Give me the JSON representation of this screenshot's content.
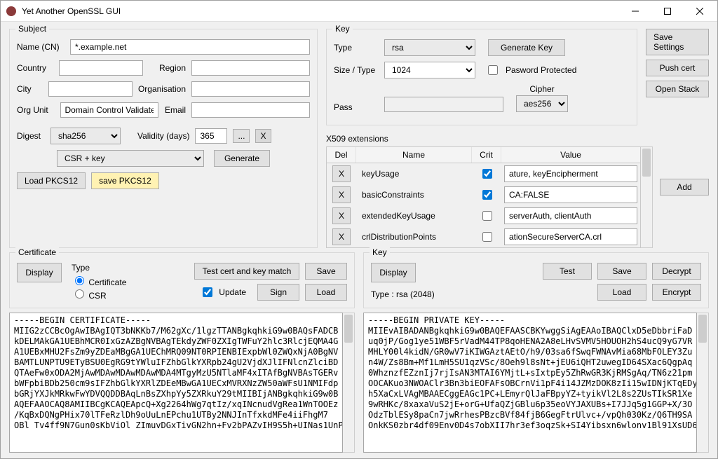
{
  "window": {
    "title": "Yet Another OpenSSL GUI"
  },
  "side_buttons": {
    "save_settings": "Save Settings",
    "push_cert": "Push cert",
    "open_stack": "Open Stack",
    "add": "Add"
  },
  "subject": {
    "legend": "Subject",
    "name_label": "Name (CN)",
    "name_value": "*.example.net",
    "country_label": "Country",
    "country_value": "",
    "region_label": "Region",
    "region_value": "",
    "city_label": "City",
    "city_value": "",
    "org_label": "Organisation",
    "org_value": "",
    "ou_label": "Org Unit",
    "ou_value": "Domain Control Validated",
    "email_label": "Email",
    "email_value": "",
    "digest_label": "Digest",
    "digest_value": "sha256",
    "validity_label": "Validity (days)",
    "validity_value": "365",
    "browse": "...",
    "clear": "X",
    "mode_value": "CSR + key",
    "generate": "Generate",
    "load_pkcs12": "Load PKCS12",
    "save_pkcs12": "save PKCS12"
  },
  "key": {
    "legend": "Key",
    "type_label": "Type",
    "type_value": "rsa",
    "gen_key": "Generate Key",
    "size_label": "Size / Type",
    "size_value": "1024",
    "pwd_protected_label": "Pasword Protected",
    "pwd_protected_checked": false,
    "pass_label": "Pass",
    "pass_value": "",
    "cipher_label": "Cipher",
    "cipher_value": "aes256"
  },
  "x509": {
    "legend": "X509 extensions",
    "cols": {
      "del": "Del",
      "name": "Name",
      "crit": "Crit",
      "value": "Value"
    },
    "rows": [
      {
        "name": "keyUsage",
        "crit": true,
        "value": "ature, keyEncipherment"
      },
      {
        "name": "basicConstraints",
        "crit": true,
        "value": "CA:FALSE"
      },
      {
        "name": "extendedKeyUsage",
        "crit": false,
        "value": "serverAuth, clientAuth"
      },
      {
        "name": "crlDistributionPoints",
        "crit": false,
        "value": "ationSecureServerCA.crl"
      }
    ],
    "del_glyph": "X"
  },
  "cert_panel": {
    "legend": "Certificate",
    "display": "Display",
    "type_label": "Type",
    "radio_cert": "Certificate",
    "radio_csr": "CSR",
    "test_match": "Test cert and key match",
    "save": "Save",
    "sign": "Sign",
    "load": "Load",
    "update_label": "Update",
    "update_checked": true
  },
  "key_panel": {
    "legend": "Key",
    "display": "Display",
    "type_line": "Type :  rsa (2048)",
    "test": "Test",
    "save": "Save",
    "decrypt": "Decrypt",
    "load": "Load",
    "encrypt": "Encrypt"
  },
  "cert_text": "-----BEGIN CERTIFICATE-----\nMIIG2zCCBcOgAwIBAgIQT3bNKKb7/M62gXc/1lgzTTANBgkqhkiG9w0BAQsFADCB\nkDELMAkGA1UEBhMCR0IxGzAZBgNVBAgTEkdyZWF0ZXIgTWFuY2hlc3RlcjEQMA4G\nA1UEBxMHU2FsZm9yZDEaMBgGA1UEChMRQ09NT0RPIENBIExpbWl0ZWQxNjA0BgNV\nBAMTLUNPTU9ETyBSU0EgRG9tYWluIFZhbGlkYXRpb24gU2VjdXJlIFNlcnZlciBD\nQTAeFw0xODA2MjAwMDAwMDAwMDAwMDA4MTgyMzU5NTlaMF4xITAfBgNVBAsTGERv\nbWFpbiBDb250cm9sIFZhbGlkYXRlZDEeMBwGA1UECxMVRXNzZW50aWFsU1NMIFdp\nbGRjYXJkMRkwFwYDVQQDDBAqLnBsZXhpYy5ZXRkuY29tMIIBIjANBgkqhkiG9w0B\nAQEFAAOCAQ8AMIIBCgKCAQEApcQ+Xg2264hWg7qtIz/xqINcnudVgRea1WnTOOEz\n/KqBxDQNgPHix70lTFeRzlDh9oUuLnEPchu1UTBy2NNJInTfxkdMFe4iiFhgM7\nOBl Tv4ff9N7Gun0sKbViOl ZImuvDGxTivGN2hn+Fv2bPAZvIH9S5h+UINas1UnP/",
  "key_text": "-----BEGIN PRIVATE KEY-----\nMIIEvAIBADANBgkqhkiG9w0BAQEFAASCBKYwggSiAgEAAoIBAQClxD5eDbbriFaD\nuq0jP/Gog1ye51WBF5rVadM44TP8qoHENA2A8eLHvSVMV5HOUOH2hS4ucQ9yG7VR\nMHLY00l4kidN/GR0wV7iKIWGAztAEtO/h9/03sa6fSwqFWNAvMia68MbFOLEY3Zu\nn4W/Zs8Bm+Mf1LmH5SU1qzVSc/8Oeh9l8sNt+jEU6iQHT2uwegID64SXac6QgpAq\n0WhznzfEZznIj7rjIsAN3MTAI6YMjtL+sIxtpEy5ZhRwGR3KjRMSgAq/TN6z21pm\nOOCAKuo3NWOAClr3Bn3biEOFAFsOBCrnVi1pF4i14JZMzDOK8zIi15wIDNjKTqEDy\nh5XaCxLVAgMBAAECggEAGc1PC+LEmyrQlJaFBpyYZ+tyikVl2L8s2ZUsTIkSR1Xe\n9wRHKc/8xaxaVuS2jE+orG+UfaQZjGBlu6p35eoVYJAXUBs+I7JJq5g1GGP+X/3O\nOdzTblESy8paCn7jwRrhesPBzcBVf84fjB6GegFtrUlvc+/vpQh030Kz/Q6TH9SA\nOnkKS0zbr4df09Env0D4s7obXII7hr3ef3oqzSk+SI4Yibsxn6wlonv1Bl91XsUD6W"
}
